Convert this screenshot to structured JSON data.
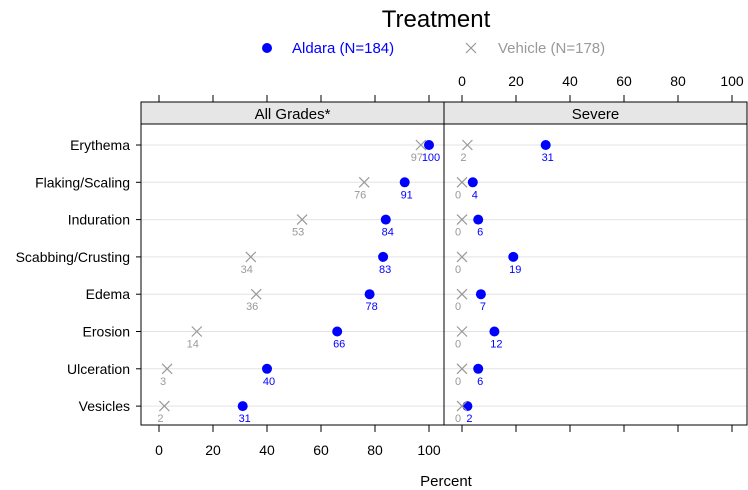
{
  "chart_data": {
    "type": "scatter",
    "title": "Treatment",
    "xlabel": "Percent",
    "xlim": [
      0,
      100
    ],
    "xticks": [
      0,
      20,
      40,
      60,
      80,
      100
    ],
    "xtick_labels": [
      "0",
      "20",
      "40",
      "60",
      "80",
      "100"
    ],
    "panels": [
      "All Grades*",
      "Severe"
    ],
    "categories": [
      "Erythema",
      "Flaking/Scaling",
      "Induration",
      "Scabbing/Crusting",
      "Edema",
      "Erosion",
      "Ulceration",
      "Vesicles"
    ],
    "series": [
      {
        "name": "Aldara (N=184)",
        "color": "#0000ff",
        "marker": "filled-circle",
        "all_grades": [
          100,
          91,
          84,
          83,
          78,
          66,
          40,
          31
        ],
        "severe": [
          31,
          4,
          6,
          19,
          7,
          12,
          6,
          2
        ],
        "all_grades_labels": [
          "100",
          "91",
          "84",
          "83",
          "78",
          "66",
          "40",
          "31"
        ],
        "severe_labels": [
          "31",
          "4",
          "6",
          "19",
          "7",
          "12",
          "6",
          "2"
        ]
      },
      {
        "name": "Vehicle (N=178)",
        "color": "#999999",
        "marker": "cross",
        "all_grades": [
          97,
          76,
          53,
          34,
          36,
          14,
          3,
          2
        ],
        "severe": [
          2,
          0,
          0,
          0,
          0,
          0,
          0,
          0
        ],
        "all_grades_labels": [
          "97",
          "76",
          "53",
          "34",
          "36",
          "14",
          "3",
          "2"
        ],
        "severe_labels": [
          "2",
          "0",
          "0",
          "0",
          "0",
          "0",
          "0",
          "0"
        ]
      }
    ],
    "legend_position": "top",
    "grid": "horizontal"
  }
}
